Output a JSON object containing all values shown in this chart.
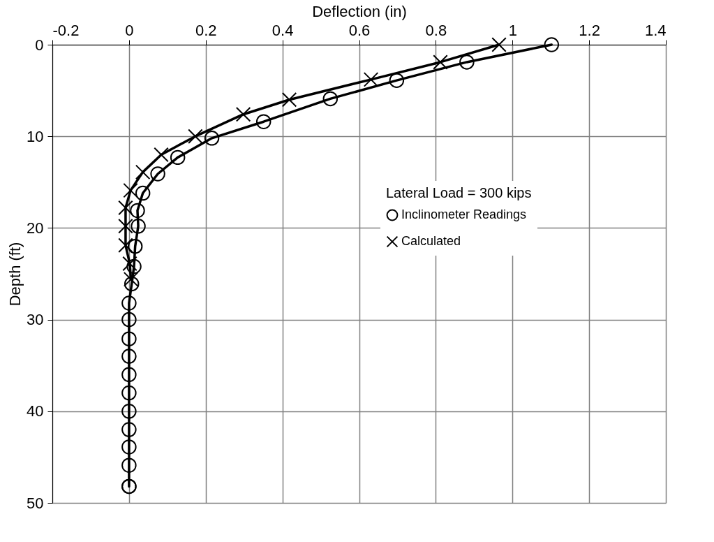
{
  "chart_data": {
    "type": "line",
    "xlabel": "Deflection (in)",
    "ylabel": "Depth (ft)",
    "legend_title": "Lateral Load = 300 kips",
    "xlim": [
      -0.2,
      1.4
    ],
    "xticks": [
      -0.2,
      0,
      0.2,
      0.4,
      0.6,
      0.8,
      1,
      1.2,
      1.4
    ],
    "ylim": [
      50,
      0
    ],
    "yticks": [
      0,
      10,
      20,
      30,
      40,
      50
    ],
    "grid": true,
    "legend": "right",
    "series": [
      {
        "name": "Inclinometer Readings",
        "color": "#000000",
        "marker": "circle",
        "x": [
          1.102,
          0.881,
          0.698,
          0.525,
          0.351,
          0.216,
          0.127,
          0.075,
          0.036,
          0.022,
          0.024,
          0.016,
          0.013,
          0.007,
          0,
          0,
          0,
          0,
          0,
          0,
          0,
          0,
          0,
          0,
          0,
          0
        ],
        "values": [
          0,
          1.9,
          3.9,
          5.9,
          8.4,
          10.2,
          12.3,
          14.1,
          16.2,
          18.1,
          19.8,
          22,
          24.2,
          26.1,
          28.2,
          30,
          32.1,
          34,
          36,
          38,
          40,
          42,
          43.9,
          45.9,
          48.2,
          48.2
        ]
      },
      {
        "name": "Calculated",
        "color": "#000000",
        "marker": "cross",
        "x": [
          0.965,
          0.812,
          0.631,
          0.418,
          0.298,
          0.173,
          0.084,
          0.036,
          0.004,
          -0.009,
          -0.009,
          -0.009,
          0.002,
          0.005
        ],
        "values": [
          0,
          1.9,
          3.8,
          6.0,
          7.6,
          10,
          12,
          13.9,
          15.9,
          17.8,
          19.8,
          21.9,
          23.9,
          25.6
        ]
      }
    ]
  }
}
